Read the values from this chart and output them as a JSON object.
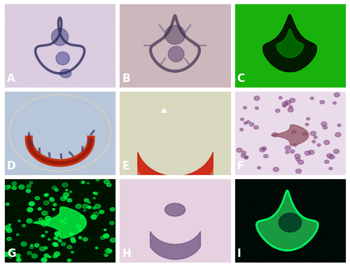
{
  "labels": [
    "A",
    "B",
    "C",
    "D",
    "E",
    "F",
    "G",
    "H",
    "I"
  ],
  "label_color": "white",
  "label_fontsize": 11,
  "label_fontweight": "bold",
  "grid_rows": 3,
  "grid_cols": 3,
  "figsize": [
    5.0,
    3.8
  ],
  "dpi": 100,
  "bg_color": "white",
  "panel_colors": {
    "A": {
      "bg": "#d8c8d8",
      "fg": "#3a3a6a",
      "style": "papanicolaou_blue"
    },
    "B": {
      "bg": "#c8b8b8",
      "fg": "#4a3a5a",
      "style": "papanicolaou_pink"
    },
    "C": {
      "bg": "#00cc00",
      "fg": "#000000",
      "style": "negative_green"
    },
    "D": {
      "bg": "#b8c8d8",
      "fg": "#8a3a2a",
      "style": "circle_red"
    },
    "E": {
      "bg": "#c8c8b8",
      "fg": "#cc2200",
      "style": "masson_red"
    },
    "F": {
      "bg": "#e8d8e8",
      "fg": "#8a4a4a",
      "style": "he_pink"
    },
    "G": {
      "bg": "#001a00",
      "fg": "#00cc44",
      "style": "fluorescent_green"
    },
    "H": {
      "bg": "#e8d0e0",
      "fg": "#7a5a7a",
      "style": "he_purple"
    },
    "I": {
      "bg": "#001a0a",
      "fg": "#33cc66",
      "style": "fluorescent_green2"
    }
  },
  "border_color": "white",
  "border_width": 2
}
